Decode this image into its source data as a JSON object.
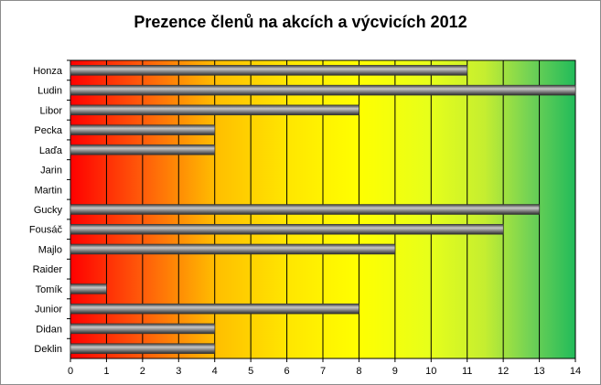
{
  "chart_data": {
    "type": "bar",
    "orientation": "horizontal",
    "title": "Prezence členů na akcích a výcvicích 2012",
    "categories": [
      "Honza",
      "Ludin",
      "Libor",
      "Pecka",
      "Laďa",
      "Jarin",
      "Martin",
      "Gucky",
      "Fousáč",
      "Majlo",
      "Raider",
      "Tomík",
      "Junior",
      "Didan",
      "Deklin"
    ],
    "values": [
      11,
      14,
      8,
      4,
      4,
      0,
      0,
      13,
      12,
      9,
      0,
      1,
      8,
      4,
      4
    ],
    "xlim": [
      0,
      14
    ],
    "xticks": [
      0,
      1,
      2,
      3,
      4,
      5,
      6,
      7,
      8,
      9,
      10,
      11,
      12,
      13,
      14
    ],
    "grid": "vertical",
    "legend": "none",
    "background_gradient": [
      "#ff0000",
      "#ffcc00",
      "#ffff00",
      "#22bb55"
    ],
    "bar_color": "#6b6b6b"
  }
}
